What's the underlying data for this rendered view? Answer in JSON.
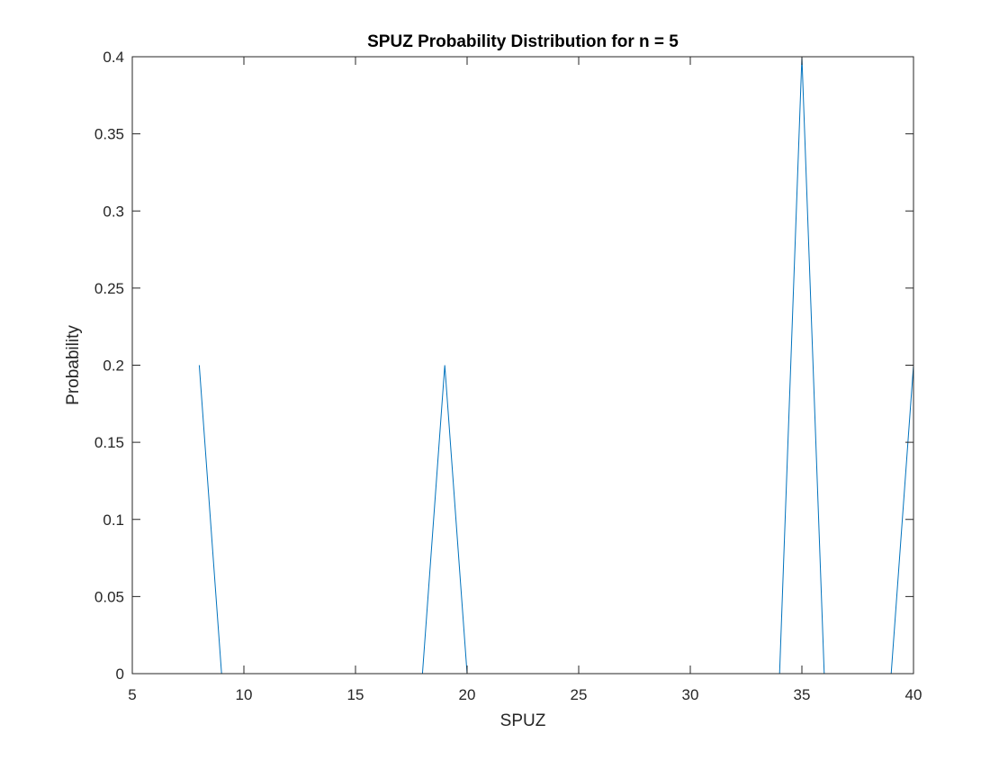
{
  "chart_data": {
    "type": "line",
    "title": "SPUZ Probability Distribution for n = 5",
    "xlabel": "SPUZ",
    "ylabel": "Probability",
    "xlim": [
      5,
      40
    ],
    "ylim": [
      0,
      0.4
    ],
    "xticks": [
      5,
      10,
      15,
      20,
      25,
      30,
      35,
      40
    ],
    "yticks": [
      0,
      0.05,
      0.1,
      0.15,
      0.2,
      0.25,
      0.3,
      0.35,
      0.4
    ],
    "xtick_labels": [
      "5",
      "10",
      "15",
      "20",
      "25",
      "30",
      "35",
      "40"
    ],
    "ytick_labels": [
      "0",
      "0.05",
      "0.1",
      "0.15",
      "0.2",
      "0.25",
      "0.3",
      "0.35",
      "0.4"
    ],
    "grid": false,
    "legend": false,
    "series": [
      {
        "color": "#0072BD",
        "x": [
          8,
          9,
          10,
          11,
          12,
          13,
          14,
          15,
          16,
          17,
          18,
          19,
          20,
          21,
          22,
          23,
          24,
          25,
          26,
          27,
          28,
          29,
          30,
          31,
          32,
          33,
          34,
          35,
          36,
          37,
          38,
          39,
          40
        ],
        "y": [
          0.2,
          0,
          0,
          0,
          0,
          0,
          0,
          0,
          0,
          0,
          0,
          0.2,
          0,
          0,
          0,
          0,
          0,
          0,
          0,
          0,
          0,
          0,
          0,
          0,
          0,
          0,
          0,
          0.4,
          0,
          0,
          0,
          0,
          0.2
        ]
      }
    ]
  }
}
